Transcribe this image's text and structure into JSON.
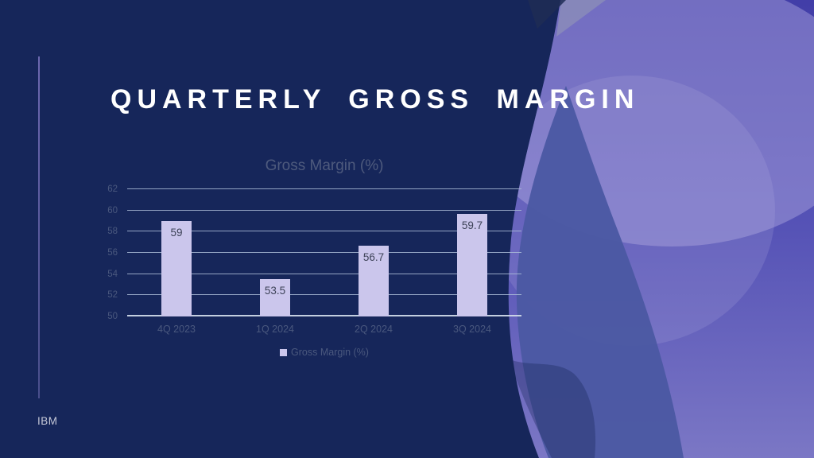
{
  "slide": {
    "title": "QUARTERLY GROSS MARGIN",
    "footer": "IBM"
  },
  "chart": {
    "title": "Gross Margin (%)",
    "legend_label": "Gross Margin (%)"
  },
  "chart_data": {
    "type": "bar",
    "title": "Gross Margin (%)",
    "categories": [
      "4Q 2023",
      "1Q 2024",
      "2Q 2024",
      "3Q 2024"
    ],
    "values": [
      59,
      53.5,
      56.7,
      59.7
    ],
    "data_labels": [
      "59",
      "53.5",
      "56.7",
      "59.7"
    ],
    "series_name": "Gross Margin (%)",
    "xlabel": "",
    "ylabel": "",
    "ylim": [
      50,
      62
    ],
    "yticks": [
      50,
      52,
      54,
      56,
      58,
      60,
      62
    ],
    "grid": true,
    "legend_position": "bottom"
  },
  "colors": {
    "background_navy": "#16265A",
    "bar_fill": "#CBC6EC",
    "wave_purple_dark": "#423EA8",
    "wave_purple_light": "#7B77C5",
    "wave_slate_blue": "#4B59A3",
    "muted_label": "#4A587E",
    "title_text": "#FFFFFF"
  }
}
